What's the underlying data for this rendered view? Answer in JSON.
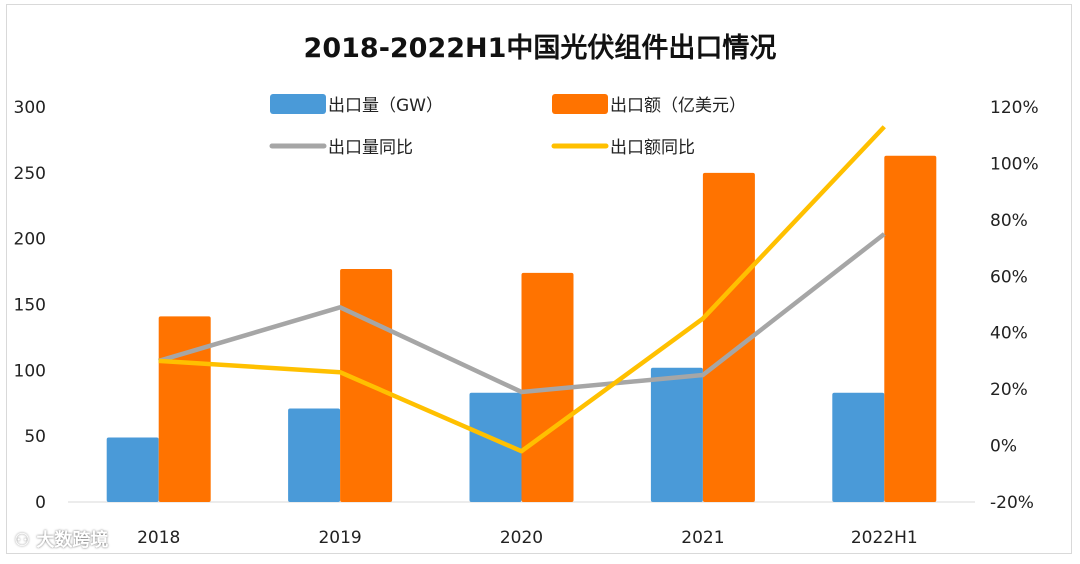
{
  "chart_data": {
    "type": "bar",
    "title": "2018-2022H1中国光伏组件出口情况",
    "categories": [
      "2018",
      "2019",
      "2020",
      "2021",
      "2022H1"
    ],
    "y_left": {
      "range": [
        0,
        300
      ],
      "ticks": [
        0,
        50,
        100,
        150,
        200,
        250,
        300
      ]
    },
    "y_right": {
      "range": [
        -20,
        120
      ],
      "ticks": [
        "-20%",
        "0%",
        "20%",
        "40%",
        "60%",
        "80%",
        "100%",
        "120%"
      ],
      "unit": "%"
    },
    "grid": false,
    "legend_placement": "top",
    "series": [
      {
        "name": "出口量（GW）",
        "type": "bar",
        "axis": "left",
        "color": "#4a9ad8",
        "values": [
          49,
          71,
          83,
          102,
          83
        ]
      },
      {
        "name": "出口额（亿美元）",
        "type": "bar",
        "axis": "left",
        "color": "#ff7300",
        "values": [
          141,
          177,
          174,
          250,
          263
        ]
      },
      {
        "name": "出口量同比",
        "type": "line",
        "axis": "right",
        "color": "#a6a6a6",
        "values": [
          30,
          49,
          19,
          25,
          75
        ]
      },
      {
        "name": "出口额同比",
        "type": "line",
        "axis": "right",
        "color": "#ffc000",
        "values": [
          30,
          26,
          -2,
          45,
          113
        ]
      }
    ]
  },
  "watermark": "大数跨境"
}
